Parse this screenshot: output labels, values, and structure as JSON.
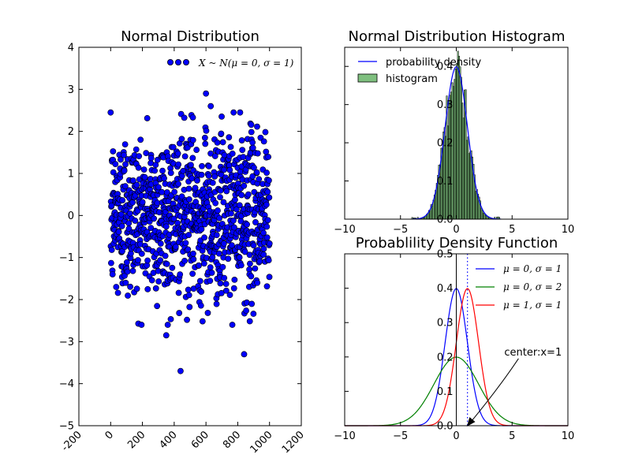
{
  "chart_data": [
    {
      "type": "scatter",
      "title": "Normal Distribution",
      "xlim": [
        -200,
        1200
      ],
      "ylim": [
        -5,
        4
      ],
      "x_ticks": [
        -200,
        0,
        200,
        400,
        600,
        800,
        1000,
        1200
      ],
      "y_ticks": [
        -5,
        -4,
        -3,
        -2,
        -1,
        0,
        1,
        2,
        3,
        4
      ],
      "x_tick_rotation": 45,
      "series": [
        {
          "name": "X ~ N(μ = 0, σ = 1)",
          "color": "#0000ff",
          "n_points": 1000,
          "x_range": [
            0,
            1000
          ],
          "distribution": "normal",
          "mu": 0,
          "sigma": 1,
          "highlight_points": [
            [
              440,
              -3.7
            ],
            [
              840,
              -3.3
            ],
            [
              350,
              -2.85
            ],
            [
              600,
              2.9
            ],
            [
              630,
              2.6
            ]
          ]
        }
      ],
      "legend": "top-right"
    },
    {
      "type": "histogram",
      "title": "Normal Distribution Histogram",
      "xlim": [
        -10,
        10
      ],
      "ylim": [
        0,
        0.45
      ],
      "x_ticks": [
        -10,
        -5,
        0,
        5,
        10
      ],
      "y_ticks": [
        0.0,
        0.1,
        0.2,
        0.3,
        0.4
      ],
      "bins": {
        "start": -4.0,
        "width": 0.1,
        "count": 80
      },
      "series": [
        {
          "name": "probability density",
          "kind": "line",
          "color": "#0000ff"
        },
        {
          "name": "histogram",
          "kind": "bar",
          "color": "#008000",
          "alpha": 0.5
        }
      ],
      "legend": "top-left"
    },
    {
      "type": "line",
      "title": "Probablility Density Function",
      "xlim": [
        -10,
        10
      ],
      "ylim": [
        0,
        0.5
      ],
      "x_ticks": [
        -10,
        -5,
        0,
        5,
        10
      ],
      "y_ticks": [
        0.0,
        0.1,
        0.2,
        0.3,
        0.4,
        0.5
      ],
      "series": [
        {
          "name": "μ = 0, σ = 1",
          "mu": 0,
          "sigma": 1,
          "color": "#0000ff"
        },
        {
          "name": "μ = 0, σ = 2",
          "mu": 0,
          "sigma": 2,
          "color": "#008000"
        },
        {
          "name": "μ = 1, σ = 1",
          "mu": 1,
          "sigma": 1,
          "color": "#ff0000"
        }
      ],
      "vlines": [
        {
          "x": 0,
          "style": "solid",
          "color": "#000000"
        }
      ],
      "center_line": {
        "x": 1,
        "style": "dotted",
        "color": "#0000ff"
      },
      "annotation": {
        "text": "center:x=1",
        "x": 1,
        "y": 0.0,
        "text_x": 6,
        "text_y": 0.2
      },
      "legend": "top-right"
    }
  ]
}
